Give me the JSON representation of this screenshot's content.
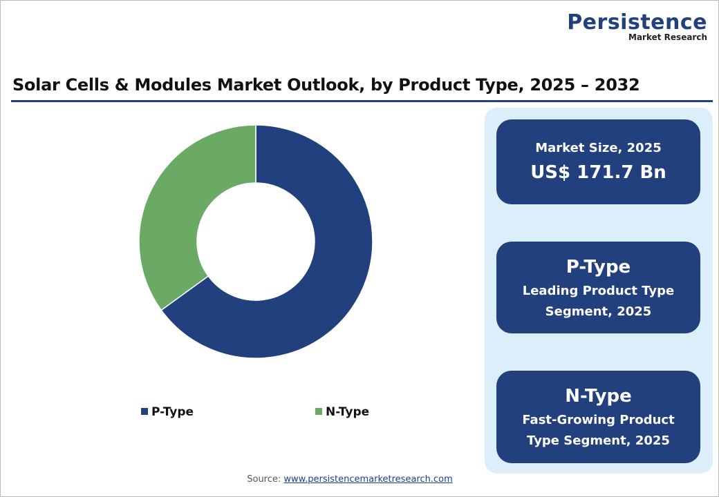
{
  "logo": {
    "name": "Persistence",
    "tagline": "Market Research"
  },
  "chart_data": {
    "type": "pie",
    "donut": true,
    "title": "Solar Cells & Modules Market Outlook, by Product Type, 2025 – 2032",
    "categories": [
      "P-Type",
      "N-Type"
    ],
    "values": [
      65,
      35
    ],
    "colors": [
      "#22407e",
      "#6aaa64"
    ]
  },
  "cards": [
    {
      "lines": [
        "Market Size, 2025",
        "US$ 171.7 Bn"
      ]
    },
    {
      "lines": [
        "P-Type",
        "Leading Product Type",
        "Segment, 2025"
      ]
    },
    {
      "lines": [
        "N-Type",
        "Fast-Growing Product",
        "Type Segment, 2025"
      ]
    }
  ],
  "source": {
    "label": "Source:",
    "url": "www.persistencemarketresearch.com"
  }
}
